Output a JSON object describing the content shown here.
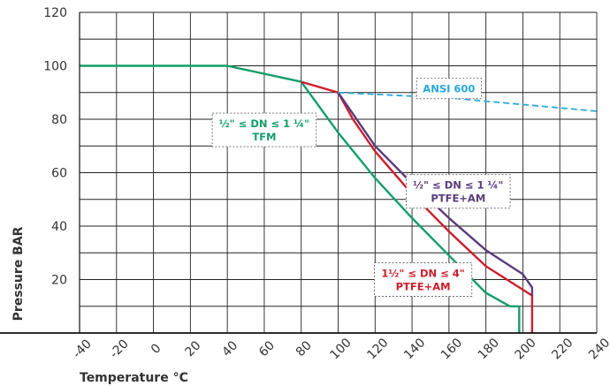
{
  "chart_data": {
    "type": "line",
    "xlabel": "Temperature °C",
    "ylabel": "Pressure BAR",
    "xlim": [
      -40,
      240
    ],
    "ylim": [
      0,
      120
    ],
    "x_ticks": [
      "-40",
      "-20",
      "0",
      "20",
      "40",
      "60",
      "80",
      "100",
      "120",
      "140",
      "160",
      "180",
      "200",
      "220",
      "240"
    ],
    "y_ticks": [
      "20",
      "40",
      "60",
      "80",
      "100",
      "120"
    ],
    "grid": true,
    "series": [
      {
        "key": "tfm",
        "color": "#129e6a",
        "dashed": false,
        "points": [
          [
            -40,
            100
          ],
          [
            40,
            100
          ],
          [
            80,
            94
          ],
          [
            100,
            75
          ],
          [
            120,
            58
          ],
          [
            140,
            43
          ],
          [
            160,
            29
          ],
          [
            180,
            15
          ],
          [
            193,
            10
          ],
          [
            198,
            10
          ],
          [
            198,
            0
          ]
        ]
      },
      {
        "key": "ptfe_am_large",
        "color": "#cc1f2b",
        "dashed": false,
        "points": [
          [
            80,
            94
          ],
          [
            100,
            90
          ],
          [
            108,
            80
          ],
          [
            120,
            68
          ],
          [
            140,
            52
          ],
          [
            160,
            38
          ],
          [
            180,
            25
          ],
          [
            205,
            14
          ],
          [
            205,
            0
          ]
        ]
      },
      {
        "key": "ptfe_am_small",
        "color": "#5a3b7d",
        "dashed": false,
        "points": [
          [
            100,
            90
          ],
          [
            108,
            82
          ],
          [
            120,
            70
          ],
          [
            140,
            56
          ],
          [
            160,
            43
          ],
          [
            180,
            31
          ],
          [
            200,
            22
          ],
          [
            205,
            17
          ],
          [
            205,
            14
          ]
        ]
      },
      {
        "key": "ansi600",
        "color": "#29a8dd",
        "dashed": true,
        "points": [
          [
            100,
            90
          ],
          [
            160,
            88
          ],
          [
            240,
            83
          ]
        ]
      }
    ],
    "annotations": [
      {
        "key": "ansi",
        "lines": [
          "ANSI 600"
        ],
        "color": "#29a8dd",
        "x": 160,
        "y": 91.5
      },
      {
        "key": "tfm",
        "lines": [
          "½\" ≤ DN ≤ 1 ¼\"",
          "TFM"
        ],
        "color": "#129e6a",
        "x": 60,
        "y": 76
      },
      {
        "key": "small",
        "lines": [
          "½\" ≤ DN ≤ 1 ¼\"",
          "PTFE+AM"
        ],
        "color": "#5a3b7d",
        "x": 165,
        "y": 53
      },
      {
        "key": "large",
        "lines": [
          "1½\" ≤ DN ≤ 4\"",
          "PTFE+AM"
        ],
        "color": "#cc1f2b",
        "x": 146,
        "y": 20
      }
    ]
  }
}
